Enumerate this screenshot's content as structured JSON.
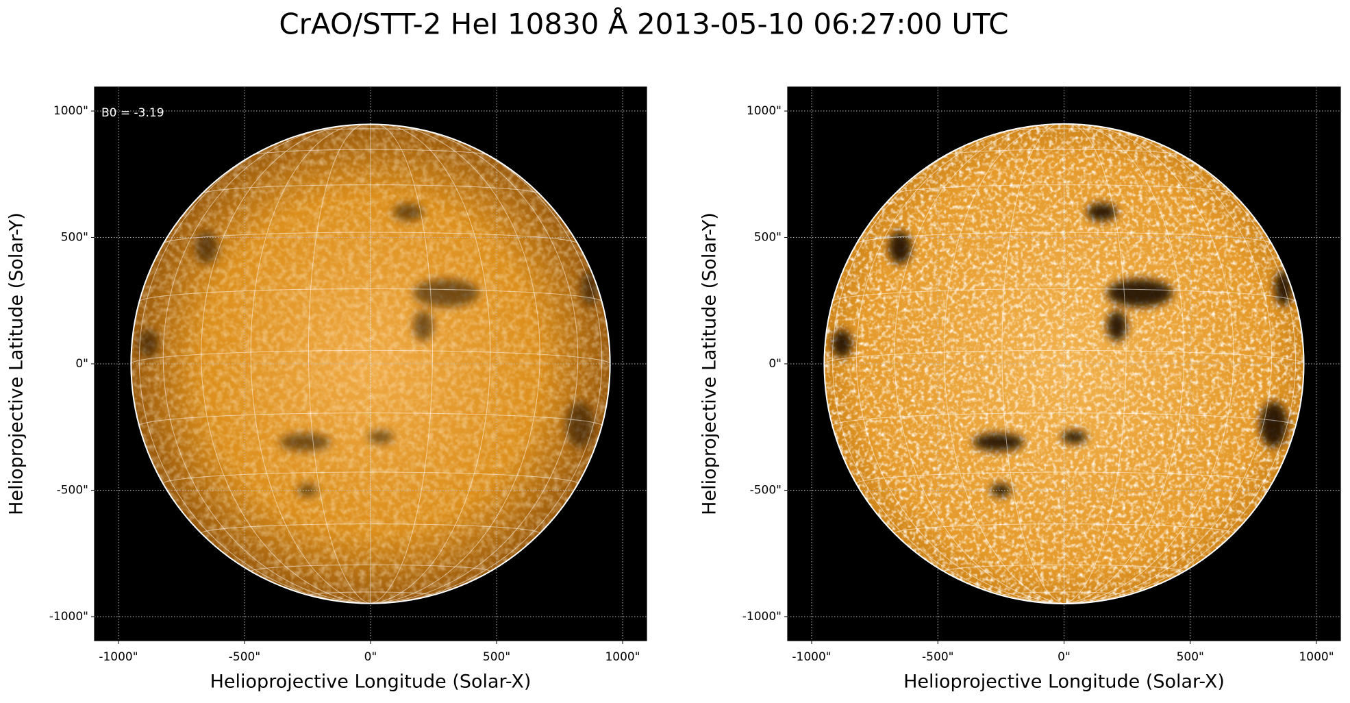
{
  "title": "CrAO/STT-2 HeI 10830 Å 2013-05-10 06:27:00 UTC",
  "chart_data": [
    {
      "type": "image",
      "annotation": "B0 = -3.19",
      "x_label": "Helioprojective Longitude (Solar-X)",
      "y_label": "Helioprojective Latitude (Solar-Y)",
      "xlim": [
        -1095,
        1095
      ],
      "ylim": [
        -1095,
        1095
      ],
      "grid": true,
      "xticks": [
        {
          "value": -1000,
          "label": "-1000\""
        },
        {
          "value": -500,
          "label": "-500\""
        },
        {
          "value": 0,
          "label": "0\""
        },
        {
          "value": 500,
          "label": "500\""
        },
        {
          "value": 1000,
          "label": "1000\""
        }
      ],
      "yticks": [
        {
          "value": -1000,
          "label": "-1000\""
        },
        {
          "value": -500,
          "label": "-500\""
        },
        {
          "value": 0,
          "label": "0\""
        },
        {
          "value": 500,
          "label": "500\""
        },
        {
          "value": 1000,
          "label": "1000\""
        }
      ]
    },
    {
      "type": "image",
      "x_label": "Helioprojective Longitude (Solar-X)",
      "y_label": "Helioprojective Latitude (Solar-Y)",
      "xlim": [
        -1095,
        1095
      ],
      "ylim": [
        -1095,
        1095
      ],
      "grid": true,
      "xticks": [
        {
          "value": -1000,
          "label": "-1000\""
        },
        {
          "value": -500,
          "label": "-500\""
        },
        {
          "value": 0,
          "label": "0\""
        },
        {
          "value": 500,
          "label": "500\""
        },
        {
          "value": 1000,
          "label": "1000\""
        }
      ],
      "yticks": [
        {
          "value": -1000,
          "label": "-1000\""
        },
        {
          "value": -500,
          "label": "-500\""
        },
        {
          "value": 0,
          "label": "0\""
        },
        {
          "value": 500,
          "label": "500\""
        },
        {
          "value": 1000,
          "label": "1000\""
        }
      ]
    }
  ]
}
